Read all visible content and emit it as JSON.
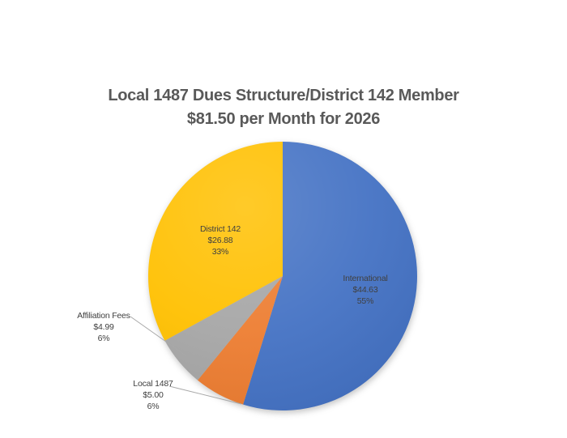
{
  "chart_data": {
    "type": "pie",
    "title": {
      "line1": "Local 1487 Dues Structure/District 142 Member",
      "line2": "$81.50 per Month for 2026",
      "color": "#595959"
    },
    "total_monthly_dues": "$81.50",
    "year": "2026",
    "start_angle_deg": 0,
    "direction": "clockwise",
    "legend": "none",
    "grid": "off",
    "label_text_color": "#404040",
    "leader_line_color": "#A8A8A8",
    "slices": [
      {
        "name": "International",
        "amount": "$44.63",
        "value": 44.63,
        "pct": "55%",
        "color": "#4472C4",
        "label_placement": "inside"
      },
      {
        "name": "Local 1487",
        "amount": "$5.00",
        "value": 5.0,
        "pct": "6%",
        "color": "#ED7D31",
        "label_placement": "outside"
      },
      {
        "name": "Affiliation Fees",
        "amount": "$4.99",
        "value": 4.99,
        "pct": "6%",
        "color": "#A6A6A6",
        "label_placement": "outside"
      },
      {
        "name": "District 142",
        "amount": "$26.88",
        "value": 26.88,
        "pct": "33%",
        "color": "#FFC000",
        "label_placement": "inside"
      }
    ]
  }
}
